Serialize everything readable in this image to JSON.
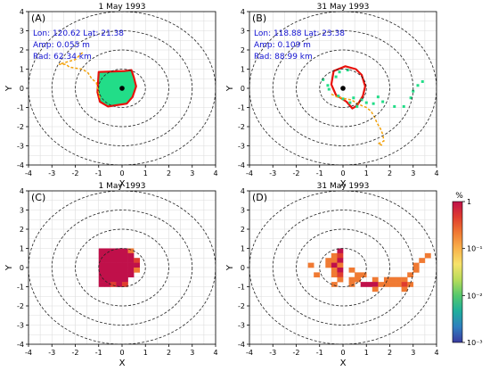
{
  "colors": {
    "contour_red": "#e8120c",
    "eddy_fill": "#22dd88",
    "track_orange": "#f2a10a",
    "annotation_blue": "#1010d0",
    "grid": "#dddddd",
    "ring": "#222222",
    "colorbar_low": "#3b3ba0",
    "colorbar_high": "#c0104a"
  },
  "colorbar": {
    "unit": "%",
    "ticks": [
      {
        "value": 1,
        "label": "1"
      },
      {
        "value": 0.1,
        "label": "10⁻¹"
      },
      {
        "value": 0.01,
        "label": "10⁻²"
      },
      {
        "value": 0.001,
        "label": "10⁻³"
      }
    ],
    "scale": "log",
    "range": [
      0.001,
      1
    ],
    "colors": [
      "#3b3ba0",
      "#2f7fbf",
      "#1fae9c",
      "#55c86d",
      "#b7dc5a",
      "#f7e26a",
      "#f9b24b",
      "#f07a33",
      "#df3d2f",
      "#c0104a"
    ]
  },
  "chart_data": [
    {
      "panel": "(A)",
      "title": "1 May 1993",
      "type": "scatter",
      "xlabel": "X",
      "ylabel": "Y",
      "xlim": [
        -4,
        4
      ],
      "ylim": [
        -4,
        4
      ],
      "xticks": [
        -4,
        -3,
        -2,
        -1,
        0,
        1,
        2,
        3,
        4
      ],
      "yticks": [
        -4,
        -3,
        -2,
        -1,
        0,
        1,
        2,
        3,
        4
      ],
      "grid": true,
      "rings": [
        1,
        2,
        3,
        4
      ],
      "annotation": [
        "Lon: 120.62 Lat: 21.38",
        "Amp: 0.055 m",
        "Rad: 62.34 km"
      ],
      "center": [
        0,
        0
      ],
      "eddy_outline": [
        [
          -1.0,
          0.85
        ],
        [
          0.1,
          0.9
        ],
        [
          0.4,
          0.95
        ],
        [
          0.5,
          0.6
        ],
        [
          0.6,
          0.1
        ],
        [
          0.45,
          -0.45
        ],
        [
          0.2,
          -0.8
        ],
        [
          -0.6,
          -0.95
        ],
        [
          -0.95,
          -0.7
        ],
        [
          -1.05,
          -0.2
        ]
      ],
      "track": [
        [
          -0.95,
          -0.5
        ],
        [
          -1.1,
          0.3
        ],
        [
          -1.3,
          0.5
        ],
        [
          -1.45,
          0.8
        ],
        [
          -1.7,
          1.0
        ],
        [
          -2.0,
          1.05
        ],
        [
          -2.25,
          1.1
        ],
        [
          -2.4,
          1.25
        ],
        [
          -2.7,
          1.25
        ],
        [
          -2.0,
          1.5
        ],
        [
          -1.75,
          1.8
        ],
        [
          -1.65,
          1.9
        ]
      ],
      "occupancy_cells": []
    },
    {
      "panel": "(B)",
      "title": "31 May 1993",
      "type": "scatter",
      "xlabel": "X",
      "ylabel": "Y",
      "xlim": [
        -4,
        4
      ],
      "ylim": [
        -4,
        4
      ],
      "xticks": [
        -4,
        -3,
        -2,
        -1,
        0,
        1,
        2,
        3,
        4
      ],
      "yticks": [
        -4,
        -3,
        -2,
        -1,
        0,
        1,
        2,
        3,
        4
      ],
      "grid": true,
      "rings": [
        1,
        2,
        3,
        4
      ],
      "annotation": [
        "Lon: 118.88 Lat: 23.38",
        "Amp: 0.109 m",
        "Rad: 88.99 km"
      ],
      "center": [
        0,
        0
      ],
      "eddy_outline": [
        [
          -0.4,
          0.9
        ],
        [
          0.1,
          1.15
        ],
        [
          0.55,
          1.0
        ],
        [
          0.8,
          0.7
        ],
        [
          0.95,
          0.1
        ],
        [
          0.85,
          -0.4
        ],
        [
          0.6,
          -0.9
        ],
        [
          0.4,
          -1.05
        ],
        [
          0.15,
          -0.7
        ],
        [
          -0.3,
          -0.35
        ],
        [
          -0.5,
          0.2
        ]
      ],
      "track": [
        [
          -0.5,
          -0.3
        ],
        [
          -0.25,
          -0.45
        ],
        [
          0.1,
          -0.55
        ],
        [
          0.35,
          -0.6
        ],
        [
          0.55,
          -0.75
        ],
        [
          0.8,
          -0.9
        ],
        [
          1.0,
          -1.0
        ],
        [
          1.2,
          -1.2
        ],
        [
          1.35,
          -1.5
        ],
        [
          1.45,
          -1.8
        ],
        [
          1.6,
          -2.1
        ],
        [
          1.7,
          -2.4
        ],
        [
          1.75,
          -2.75
        ],
        [
          1.5,
          -2.9
        ],
        [
          1.75,
          -3.0
        ]
      ],
      "scatter_points": [
        [
          -0.2,
          -0.4
        ],
        [
          0.0,
          -0.55
        ],
        [
          0.3,
          -0.75
        ],
        [
          0.45,
          -0.5
        ],
        [
          0.6,
          -0.95
        ],
        [
          0.8,
          -0.6
        ],
        [
          1.0,
          -0.75
        ],
        [
          1.3,
          -0.8
        ],
        [
          1.7,
          -0.7
        ],
        [
          2.2,
          -0.95
        ],
        [
          2.6,
          -0.95
        ],
        [
          2.9,
          -0.5
        ],
        [
          3.0,
          -0.15
        ],
        [
          3.2,
          0.15
        ],
        [
          3.4,
          0.35
        ],
        [
          -0.85,
          0.45
        ],
        [
          -0.65,
          0.15
        ],
        [
          -0.3,
          0.6
        ],
        [
          -0.15,
          0.85
        ],
        [
          0.2,
          0.95
        ],
        [
          -0.6,
          -0.05
        ],
        [
          1.5,
          -0.45
        ]
      ],
      "occupancy_cells": []
    },
    {
      "panel": "(C)",
      "title": "1 May 1993",
      "type": "heatmap",
      "xlabel": "X",
      "ylabel": "Y",
      "xlim": [
        -4,
        4
      ],
      "ylim": [
        -4,
        4
      ],
      "xticks": [
        -4,
        -3,
        -2,
        -1,
        0,
        1,
        2,
        3,
        4
      ],
      "yticks": [
        -4,
        -3,
        -2,
        -1,
        0,
        1,
        2,
        3,
        4
      ],
      "grid": true,
      "rings": [
        1,
        2,
        3,
        4
      ],
      "annotation": [],
      "center": [
        0,
        0
      ],
      "occupancy_cells": [
        [
          -1.0,
          0.75,
          1
        ],
        [
          -0.75,
          0.75,
          1
        ],
        [
          -0.5,
          0.75,
          1
        ],
        [
          -0.25,
          0.75,
          1
        ],
        [
          0.0,
          0.75,
          1
        ],
        [
          0.25,
          0.75,
          0.3
        ],
        [
          -1.0,
          0.5,
          1
        ],
        [
          -0.75,
          0.5,
          1
        ],
        [
          -0.5,
          0.5,
          1
        ],
        [
          -0.25,
          0.5,
          1
        ],
        [
          0.0,
          0.5,
          1
        ],
        [
          0.25,
          0.5,
          1
        ],
        [
          -1.0,
          0.25,
          1
        ],
        [
          -0.75,
          0.25,
          1
        ],
        [
          -0.5,
          0.25,
          1
        ],
        [
          -0.25,
          0.25,
          1
        ],
        [
          0.0,
          0.25,
          1
        ],
        [
          0.25,
          0.25,
          1
        ],
        [
          0.5,
          0.25,
          0.5
        ],
        [
          -1.0,
          0.0,
          1
        ],
        [
          -0.75,
          0.0,
          1
        ],
        [
          -0.5,
          0.0,
          1
        ],
        [
          -0.25,
          0.0,
          1
        ],
        [
          0.0,
          0.0,
          1
        ],
        [
          0.25,
          0.0,
          1
        ],
        [
          0.5,
          0.0,
          1
        ],
        [
          -1.0,
          -0.25,
          1
        ],
        [
          -0.75,
          -0.25,
          1
        ],
        [
          -0.5,
          -0.25,
          1
        ],
        [
          -0.25,
          -0.25,
          1
        ],
        [
          0.0,
          -0.25,
          1
        ],
        [
          0.25,
          -0.25,
          1
        ],
        [
          0.5,
          -0.25,
          0.3
        ],
        [
          -1.0,
          -0.5,
          1
        ],
        [
          -0.75,
          -0.5,
          1
        ],
        [
          -0.5,
          -0.5,
          1
        ],
        [
          -0.25,
          -0.5,
          1
        ],
        [
          0.0,
          -0.5,
          1
        ],
        [
          0.25,
          -0.5,
          1
        ],
        [
          -1.0,
          -0.75,
          1
        ],
        [
          -0.75,
          -0.75,
          1
        ],
        [
          -0.5,
          -0.75,
          1
        ],
        [
          -0.25,
          -0.75,
          1
        ],
        [
          0.0,
          -0.75,
          1
        ],
        [
          -1.0,
          -1.0,
          1
        ],
        [
          -0.75,
          -1.0,
          1
        ],
        [
          -0.5,
          -1.0,
          0.4
        ],
        [
          -0.25,
          -1.0,
          1
        ],
        [
          0.0,
          -1.0,
          0.4
        ]
      ]
    },
    {
      "panel": "(D)",
      "title": "31 May 1993",
      "type": "heatmap",
      "xlabel": "X",
      "ylabel": "Y",
      "xlim": [
        -4,
        4
      ],
      "ylim": [
        -4,
        4
      ],
      "xticks": [
        -4,
        -3,
        -2,
        -1,
        0,
        1,
        2,
        3,
        4
      ],
      "yticks": [
        -4,
        -3,
        -2,
        -1,
        0,
        1,
        2,
        3,
        4
      ],
      "grid": true,
      "rings": [
        1,
        2,
        3,
        4
      ],
      "annotation": [],
      "center": [
        0,
        0
      ],
      "occupancy_cells": [
        [
          -0.5,
          0.5,
          0.2
        ],
        [
          -0.25,
          0.75,
          1
        ],
        [
          -0.25,
          0.5,
          0.4
        ],
        [
          -0.75,
          0.25,
          0.2
        ],
        [
          -0.5,
          0.25,
          0.3
        ],
        [
          -0.25,
          0.25,
          1
        ],
        [
          -1.5,
          0.0,
          0.15
        ],
        [
          -0.75,
          0.0,
          0.3
        ],
        [
          -0.5,
          0.0,
          1
        ],
        [
          -0.25,
          0.0,
          0.3
        ],
        [
          -0.5,
          -0.25,
          0.2
        ],
        [
          -0.25,
          -0.25,
          1
        ],
        [
          0.25,
          -0.25,
          0.2
        ],
        [
          -1.25,
          -0.5,
          0.15
        ],
        [
          -0.5,
          -0.5,
          0.3
        ],
        [
          -0.25,
          -0.5,
          0.4
        ],
        [
          0.5,
          -0.5,
          0.2
        ],
        [
          0.75,
          -0.5,
          0.15
        ],
        [
          -0.25,
          -0.75,
          0.3
        ],
        [
          0.25,
          -0.75,
          0.15
        ],
        [
          0.5,
          -0.75,
          0.2
        ],
        [
          1.25,
          -0.75,
          0.2
        ],
        [
          1.75,
          -0.75,
          0.15
        ],
        [
          2.0,
          -0.75,
          0.3
        ],
        [
          2.25,
          -0.75,
          0.2
        ],
        [
          2.5,
          -0.75,
          0.15
        ],
        [
          -0.5,
          -1.0,
          0.15
        ],
        [
          0.25,
          -1.0,
          0.2
        ],
        [
          0.75,
          -1.0,
          1
        ],
        [
          1.0,
          -1.0,
          1
        ],
        [
          1.25,
          -1.0,
          1
        ],
        [
          1.5,
          -1.0,
          0.3
        ],
        [
          1.75,
          -1.0,
          0.2
        ],
        [
          2.0,
          -1.0,
          0.2
        ],
        [
          2.25,
          -1.0,
          0.15
        ],
        [
          2.5,
          -1.0,
          0.4
        ],
        [
          2.75,
          -1.0,
          0.3
        ],
        [
          1.25,
          -1.25,
          0.2
        ],
        [
          2.5,
          -1.25,
          0.15
        ],
        [
          2.75,
          -0.5,
          0.2
        ],
        [
          3.0,
          -0.25,
          0.2
        ],
        [
          3.0,
          0.0,
          0.3
        ],
        [
          3.25,
          0.25,
          0.15
        ],
        [
          3.5,
          0.5,
          0.2
        ]
      ]
    }
  ]
}
